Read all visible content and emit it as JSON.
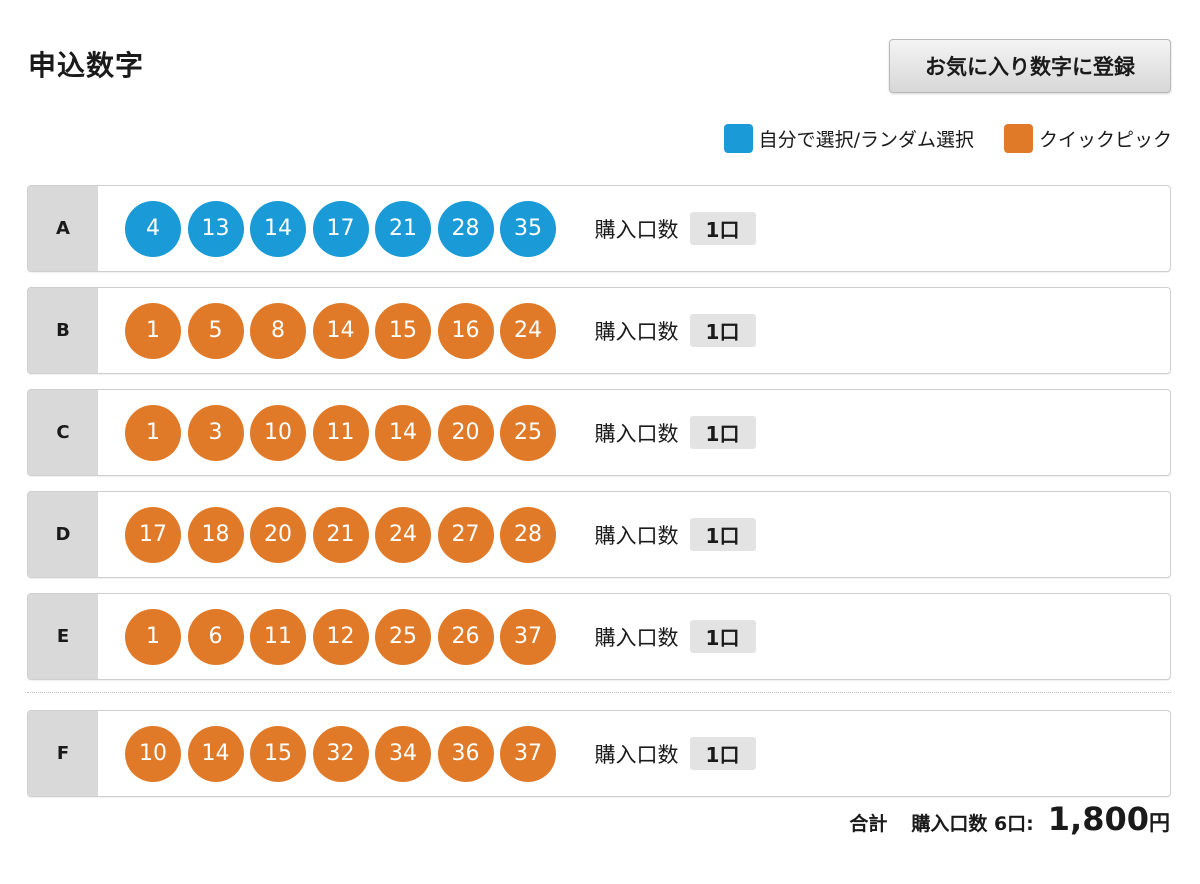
{
  "page_title": "申込数字",
  "favorite_button_label": "お気に入り数字に登録",
  "legend": {
    "items": [
      {
        "label": "自分で選択/ランダム選択",
        "color": "#1a9ad6"
      },
      {
        "label": "クイックピック",
        "color": "#e07a28"
      }
    ]
  },
  "colors": {
    "self_select": "#1a9ad6",
    "quick_pick": "#e07a28"
  },
  "rows": [
    {
      "letter": "A",
      "mode": "self_select",
      "numbers": [
        "4",
        "13",
        "14",
        "17",
        "21",
        "28",
        "35"
      ],
      "qty_label": "購入口数",
      "qty": "1口"
    },
    {
      "letter": "B",
      "mode": "quick_pick",
      "numbers": [
        "1",
        "5",
        "8",
        "14",
        "15",
        "16",
        "24"
      ],
      "qty_label": "購入口数",
      "qty": "1口"
    },
    {
      "letter": "C",
      "mode": "quick_pick",
      "numbers": [
        "1",
        "3",
        "10",
        "11",
        "14",
        "20",
        "25"
      ],
      "qty_label": "購入口数",
      "qty": "1口"
    },
    {
      "letter": "D",
      "mode": "quick_pick",
      "numbers": [
        "17",
        "18",
        "20",
        "21",
        "24",
        "27",
        "28"
      ],
      "qty_label": "購入口数",
      "qty": "1口"
    },
    {
      "letter": "E",
      "mode": "quick_pick",
      "numbers": [
        "1",
        "6",
        "11",
        "12",
        "25",
        "26",
        "37"
      ],
      "qty_label": "購入口数",
      "qty": "1口"
    },
    {
      "letter": "F",
      "mode": "quick_pick",
      "numbers": [
        "10",
        "14",
        "15",
        "32",
        "34",
        "36",
        "37"
      ],
      "qty_label": "購入口数",
      "qty": "1口"
    }
  ],
  "total": {
    "label": "合計",
    "qty_text": "購入口数 6口:",
    "amount": "1,800",
    "currency": "円"
  }
}
